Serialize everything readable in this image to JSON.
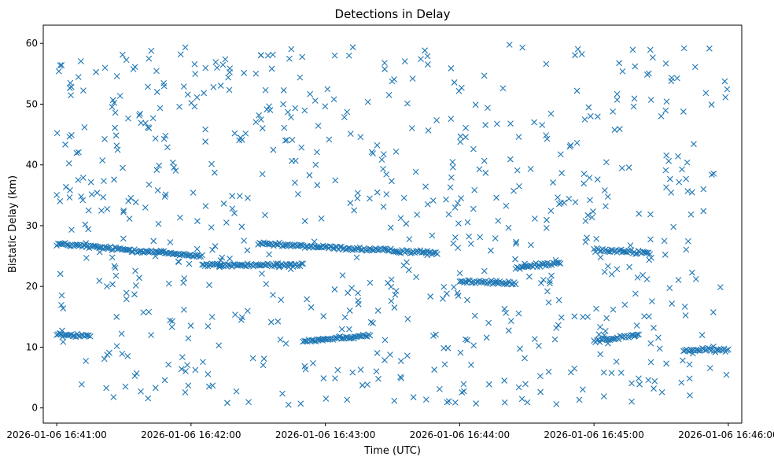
{
  "chart_data": {
    "type": "scatter",
    "title": "Detections in Delay",
    "xlabel": "Time (UTC)",
    "ylabel": "Bistatic Delay (km)",
    "marker": "x",
    "marker_color": "#1f77b4",
    "grid": false,
    "legend": "none",
    "x_unit": "time (UTC)",
    "xlim": [
      "2026-01-06 16:40:54",
      "2026-01-06 16:46:06"
    ],
    "ylim": [
      -2.5,
      63
    ],
    "xticks": [
      "2026-01-06 16:41:00",
      "2026-01-06 16:42:00",
      "2026-01-06 16:43:00",
      "2026-01-06 16:44:00",
      "2026-01-06 16:45:00",
      "2026-01-06 16:46:00"
    ],
    "yticks": [
      0,
      10,
      20,
      30,
      40,
      50,
      60
    ],
    "tracks": [
      {
        "from": [
          "16:41:00",
          27.0
        ],
        "to": [
          "16:42:05",
          25.0
        ]
      },
      {
        "from": [
          "16:42:05",
          23.5
        ],
        "to": [
          "16:42:50",
          23.5
        ]
      },
      {
        "from": [
          "16:42:30",
          27.0
        ],
        "to": [
          "16:43:50",
          25.5
        ]
      },
      {
        "from": [
          "16:41:00",
          12.0
        ],
        "to": [
          "16:41:15",
          12.0
        ]
      },
      {
        "from": [
          "16:42:50",
          11.0
        ],
        "to": [
          "16:43:20",
          12.0
        ]
      },
      {
        "from": [
          "16:44:00",
          20.8
        ],
        "to": [
          "16:44:25",
          20.5
        ]
      },
      {
        "from": [
          "16:44:25",
          23.0
        ],
        "to": [
          "16:44:45",
          24.0
        ]
      },
      {
        "from": [
          "16:45:00",
          11.0
        ],
        "to": [
          "16:45:20",
          12.0
        ]
      },
      {
        "from": [
          "16:45:00",
          26.0
        ],
        "to": [
          "16:45:25",
          25.5
        ]
      },
      {
        "from": [
          "16:45:40",
          9.5
        ],
        "to": [
          "16:46:00",
          9.5
        ]
      }
    ],
    "noise": {
      "count": 720,
      "x_range": [
        "16:41:00",
        "16:46:00"
      ],
      "y_range": [
        0.5,
        60
      ]
    }
  }
}
